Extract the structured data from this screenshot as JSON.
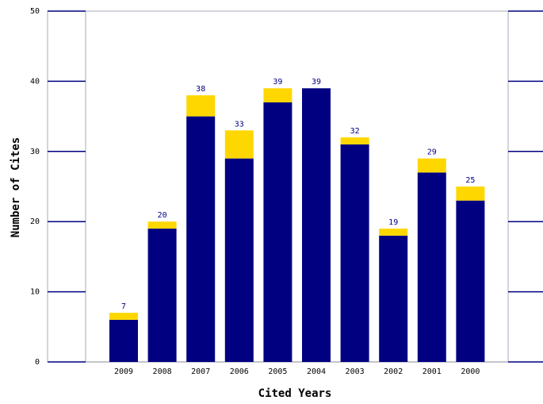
{
  "chart_data": {
    "type": "bar",
    "stacked": true,
    "title": "",
    "xlabel": "Cited Years",
    "ylabel": "Number of Cites",
    "ylim": [
      0,
      50
    ],
    "yticks": [
      0,
      10,
      20,
      30,
      40,
      50
    ],
    "categories": [
      "2009",
      "2008",
      "2007",
      "2006",
      "2005",
      "2004",
      "2003",
      "2002",
      "2001",
      "2000"
    ],
    "series": [
      {
        "values": [
          6,
          19,
          35,
          29,
          37,
          39,
          31,
          18,
          27,
          23
        ],
        "color": "#000080"
      },
      {
        "values": [
          1,
          1,
          3,
          4,
          2,
          0,
          1,
          1,
          2,
          2
        ],
        "color": "#ffd700"
      }
    ],
    "totals": [
      "7",
      "20",
      "38",
      "33",
      "39",
      "39",
      "32",
      "19",
      "29",
      "25"
    ],
    "grid": false,
    "legend": "none"
  }
}
